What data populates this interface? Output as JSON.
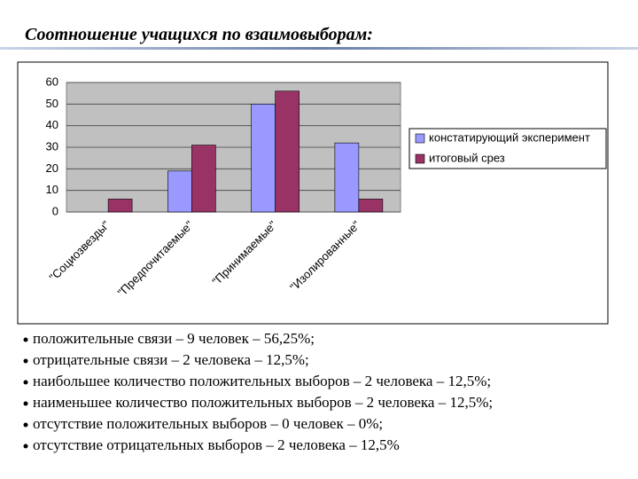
{
  "chart_data": {
    "type": "bar",
    "title": "Соотношение учащихся  по взаимовыборам:",
    "categories": [
      "\"Социозвезды\"",
      "\"Предпочитаемые\"",
      "\"Принимаемые\"",
      "\"Изолированные\""
    ],
    "series": [
      {
        "name": "констатирующий эксперимент",
        "color": "#9999ff",
        "values": [
          0,
          19,
          50,
          32
        ]
      },
      {
        "name": "итоговый срез",
        "color": "#993366",
        "values": [
          6,
          31,
          56,
          6
        ]
      }
    ],
    "ylim": [
      0,
      60
    ],
    "yticks": [
      0,
      10,
      20,
      30,
      40,
      50,
      60
    ],
    "grid": true,
    "legend": "right"
  },
  "bullets": [
    "положительные связи – 9 человек – 56,25%;",
    "отрицательные связи – 2 человека – 12,5%;",
    "наибольшее количество положительных выборов – 2 человека – 12,5%;",
    "наименьшее количество положительных выборов – 2 человека – 12,5%;",
    "отсутствие положительных выборов – 0 человек – 0%;",
    "отсутствие отрицательных выборов – 2 человека – 12,5%"
  ]
}
